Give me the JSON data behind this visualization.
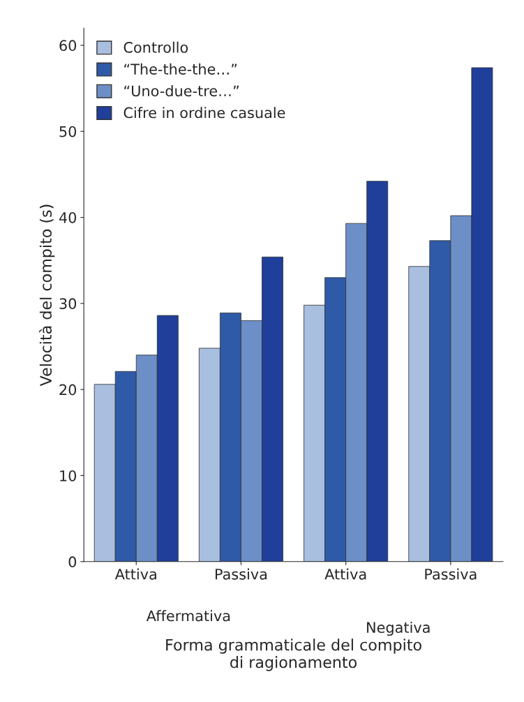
{
  "chart_data": {
    "type": "bar",
    "xlabel": "Forma grammaticale del compito\ndi ragionamento",
    "ylabel": "Velocità del compito (s)",
    "categories": [
      "Attiva",
      "Passiva",
      "Attiva",
      "Passiva"
    ],
    "series": [
      {
        "name": "Controllo",
        "color": "#a9bfe0",
        "values": [
          20.6,
          24.8,
          29.8,
          34.3
        ]
      },
      {
        "name": "“The-the-the…”",
        "color": "#2f5aa8",
        "values": [
          22.1,
          28.9,
          33.0,
          37.3
        ]
      },
      {
        "name": "“Uno-due-tre…”",
        "color": "#6d8fc8",
        "values": [
          24.0,
          28.0,
          39.3,
          40.2
        ]
      },
      {
        "name": "Cifre in ordine casuale",
        "color": "#1f3f9a",
        "values": [
          28.6,
          35.4,
          44.2,
          57.4
        ]
      }
    ],
    "annotations": [
      "Affermativa",
      "Negativa"
    ],
    "ylim": [
      0,
      62
    ],
    "yticks": [
      0,
      10,
      20,
      30,
      40,
      50,
      60
    ],
    "grid": false,
    "legend": "top left"
  }
}
